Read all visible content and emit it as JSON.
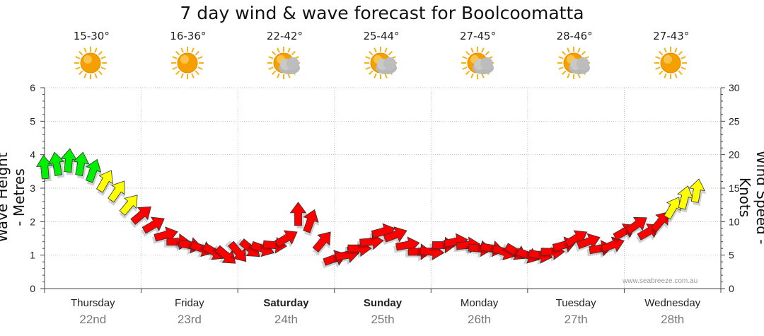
{
  "title": "7 day wind & wave forecast for Boolcoomatta",
  "watermark": "www.seabreeze.com.au",
  "days": [
    {
      "temp": "15-30°",
      "icon": "sun-icon",
      "day": "Thursday",
      "date": "22nd",
      "bold": false
    },
    {
      "temp": "16-36°",
      "icon": "sun-icon",
      "day": "Friday",
      "date": "23rd",
      "bold": false
    },
    {
      "temp": "22-42°",
      "icon": "sun-cloud-icon",
      "day": "Saturday",
      "date": "24th",
      "bold": true
    },
    {
      "temp": "25-44°",
      "icon": "sun-cloud-icon",
      "day": "Sunday",
      "date": "25th",
      "bold": true
    },
    {
      "temp": "27-45°",
      "icon": "sun-cloud-icon",
      "day": "Monday",
      "date": "26th",
      "bold": false
    },
    {
      "temp": "28-46°",
      "icon": "sun-cloud-icon",
      "day": "Tuesday",
      "date": "27th",
      "bold": false
    },
    {
      "temp": "27-43°",
      "icon": "sun-icon",
      "day": "Wednesday",
      "date": "28th",
      "bold": false
    }
  ],
  "colors": {
    "grid": "#aaaaaa",
    "axis": "#444444",
    "sun": "#f5a000",
    "cloud": "#b8b8b8",
    "low": "#ff0000",
    "mid": "#ffff00",
    "high": "#00ee00"
  },
  "chart_data": {
    "type": "line",
    "ylabel": "Wave Height - Metres",
    "y2label": "Wind Speed - Knots",
    "ylim": [
      0,
      6
    ],
    "y2lim": [
      0,
      30
    ],
    "yticks": [
      0,
      1,
      2,
      3,
      4,
      5,
      6
    ],
    "y2ticks": [
      0,
      5,
      10,
      15,
      20,
      25,
      30
    ],
    "grid": true,
    "x_unit": "days from Thursday 00:00",
    "series": [
      {
        "name": "Wind Speed - Knots",
        "points": [
          [
            0.0,
            18.0,
            355
          ],
          [
            0.125,
            18.5,
            350
          ],
          [
            0.25,
            19.0,
            5
          ],
          [
            0.375,
            18.5,
            10
          ],
          [
            0.5,
            17.5,
            20
          ],
          [
            0.625,
            16.0,
            30
          ],
          [
            0.75,
            14.5,
            35
          ],
          [
            0.875,
            12.5,
            40
          ],
          [
            1.0,
            11.0,
            50
          ],
          [
            1.125,
            9.5,
            60
          ],
          [
            1.25,
            8.0,
            75
          ],
          [
            1.375,
            7.0,
            90
          ],
          [
            1.5,
            6.5,
            100
          ],
          [
            1.625,
            6.0,
            110
          ],
          [
            1.75,
            5.5,
            120
          ],
          [
            1.875,
            5.0,
            130
          ],
          [
            2.0,
            5.5,
            140
          ],
          [
            2.125,
            6.0,
            130
          ],
          [
            2.25,
            6.0,
            110
          ],
          [
            2.375,
            6.5,
            95
          ],
          [
            2.5,
            7.5,
            60
          ],
          [
            2.625,
            11.0,
            0
          ],
          [
            2.75,
            10.0,
            20
          ],
          [
            2.875,
            7.0,
            40
          ],
          [
            3.0,
            4.5,
            70
          ],
          [
            3.125,
            5.0,
            80
          ],
          [
            3.25,
            6.0,
            90
          ],
          [
            3.375,
            7.0,
            85
          ],
          [
            3.5,
            8.5,
            75
          ],
          [
            3.625,
            8.0,
            70
          ],
          [
            3.75,
            6.5,
            80
          ],
          [
            3.875,
            5.5,
            90
          ],
          [
            4.0,
            5.5,
            95
          ],
          [
            4.125,
            6.5,
            90
          ],
          [
            4.25,
            7.0,
            80
          ],
          [
            4.375,
            6.5,
            85
          ],
          [
            4.5,
            6.0,
            95
          ],
          [
            4.625,
            6.0,
            100
          ],
          [
            4.75,
            5.5,
            110
          ],
          [
            4.875,
            5.5,
            120
          ],
          [
            5.0,
            5.0,
            110
          ],
          [
            5.125,
            5.0,
            100
          ],
          [
            5.25,
            5.5,
            90
          ],
          [
            5.375,
            6.5,
            75
          ],
          [
            5.5,
            7.5,
            60
          ],
          [
            5.625,
            7.0,
            70
          ],
          [
            5.75,
            6.0,
            80
          ],
          [
            5.875,
            6.5,
            70
          ],
          [
            6.0,
            8.5,
            60
          ],
          [
            6.125,
            9.5,
            55
          ],
          [
            6.25,
            8.5,
            60
          ],
          [
            6.375,
            10.0,
            40
          ],
          [
            6.5,
            12.0,
            30
          ],
          [
            6.625,
            13.5,
            15
          ],
          [
            6.75,
            14.5,
            10
          ]
        ]
      }
    ]
  }
}
